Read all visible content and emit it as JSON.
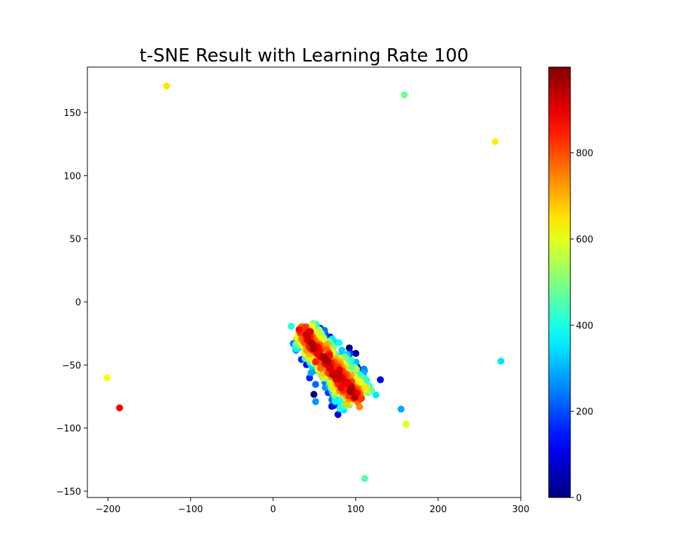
{
  "chart_data": {
    "type": "scatter",
    "title": "t-SNE Result with Learning Rate 100",
    "xlabel": "",
    "ylabel": "",
    "xlim": [
      -225,
      300
    ],
    "ylim": [
      -155,
      186
    ],
    "xticks": [
      -200,
      -100,
      0,
      100,
      200,
      300
    ],
    "yticks": [
      -150,
      -100,
      -50,
      0,
      50,
      100,
      150
    ],
    "grid": false,
    "colormap": "jet",
    "colorbar": {
      "range": [
        0,
        999
      ],
      "ticks": [
        0,
        200,
        400,
        600,
        800
      ]
    },
    "cluster": {
      "description_values": "dense main cluster of ~1000 points",
      "x_range": [
        22,
        130
      ],
      "y_range": [
        -106,
        -16
      ]
    },
    "outliers": [
      {
        "x": -129,
        "y": 171,
        "c": 650
      },
      {
        "x": 159,
        "y": 164,
        "c": 480
      },
      {
        "x": 269,
        "y": 127,
        "c": 640
      },
      {
        "x": -201,
        "y": -60,
        "c": 620
      },
      {
        "x": -186,
        "y": -84,
        "c": 880
      },
      {
        "x": 276,
        "y": -47,
        "c": 350
      },
      {
        "x": 155,
        "y": -85,
        "c": 290
      },
      {
        "x": 161,
        "y": -97,
        "c": 600
      },
      {
        "x": 111,
        "y": -140,
        "c": 460
      }
    ]
  }
}
